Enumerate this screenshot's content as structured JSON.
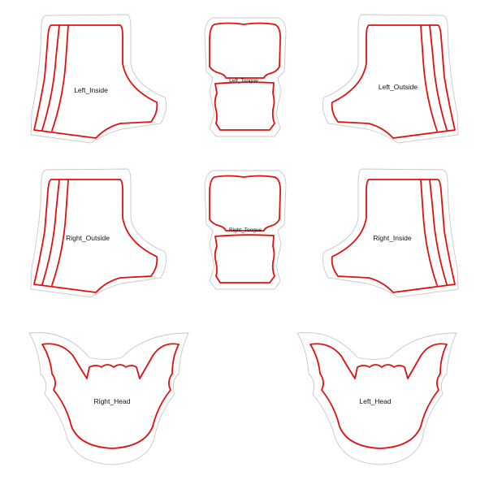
{
  "colors": {
    "background": "#ffffff",
    "cut_line": "#e01010",
    "outer_line": "#c8c8c8",
    "label": "#111111"
  },
  "pieces": {
    "left_inside": {
      "label": "Left_Inside"
    },
    "left_tongue": {
      "label": "Left_Tongue"
    },
    "left_outside": {
      "label": "Left_Outside"
    },
    "right_outside": {
      "label": "Right_Outside"
    },
    "right_tongue": {
      "label": "Right_Tongue"
    },
    "right_inside": {
      "label": "Right_Inside"
    },
    "right_head": {
      "label": "Right_Head"
    },
    "left_head": {
      "label": "Left_Head"
    }
  }
}
